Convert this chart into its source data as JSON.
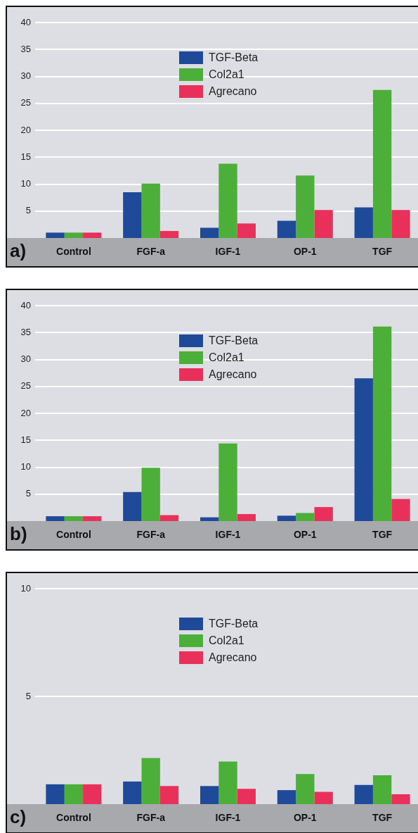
{
  "chart_data": [
    {
      "type": "bar",
      "categories": [
        "Control",
        "FGF-a",
        "IGF-1",
        "OP-1",
        "TGF"
      ],
      "series": [
        {
          "name": "TGF-Beta",
          "color": "#1f4a9a",
          "values": [
            1,
            8.5,
            1.9,
            3.2,
            5.7
          ]
        },
        {
          "name": "Col2a1",
          "color": "#4caf3a",
          "values": [
            1,
            10.1,
            13.8,
            11.6,
            27.5
          ]
        },
        {
          "name": "Agrecano",
          "color": "#e8305a",
          "values": [
            1,
            1.3,
            2.7,
            5.2,
            5.2
          ]
        }
      ],
      "ylim": [
        0,
        40
      ],
      "yticks": [
        5,
        10,
        15,
        20,
        25,
        30,
        35,
        40
      ],
      "grid": "y",
      "legend": "top",
      "annotations": [
        "a)"
      ]
    },
    {
      "type": "bar",
      "categories": [
        "Control",
        "FGF-a",
        "IGF-1",
        "OP-1",
        "TGF"
      ],
      "series": [
        {
          "name": "TGF-Beta",
          "color": "#1f4a9a",
          "values": [
            0.9,
            5.4,
            0.7,
            1,
            26.5
          ]
        },
        {
          "name": "Col2a1",
          "color": "#4caf3a",
          "values": [
            0.9,
            9.9,
            14.4,
            1.5,
            36.1
          ]
        },
        {
          "name": "Agrecano",
          "color": "#e8305a",
          "values": [
            0.9,
            1.1,
            1.3,
            2.6,
            4.1
          ]
        }
      ],
      "ylim": [
        0,
        40
      ],
      "yticks": [
        5,
        10,
        15,
        20,
        25,
        30,
        35,
        40
      ],
      "grid": "y",
      "legend": "top",
      "annotations": [
        "b)"
      ]
    },
    {
      "type": "bar",
      "categories": [
        "Control",
        "FGF-a",
        "IGF-1",
        "OP-1",
        "TGF"
      ],
      "series": [
        {
          "name": "TGF-Beta",
          "color": "#1f4a9a",
          "values": [
            0.92,
            1.05,
            0.84,
            0.65,
            0.89
          ]
        },
        {
          "name": "Col2a1",
          "color": "#4caf3a",
          "values": [
            0.92,
            2.14,
            1.98,
            1.4,
            1.34
          ]
        },
        {
          "name": "Agrecano",
          "color": "#e8305a",
          "values": [
            0.92,
            0.84,
            0.71,
            0.57,
            0.46
          ]
        }
      ],
      "ylim": [
        0,
        10
      ],
      "yticks": [
        5,
        10
      ],
      "grid": "y",
      "legend": "top",
      "annotations": [
        "c)"
      ]
    }
  ]
}
